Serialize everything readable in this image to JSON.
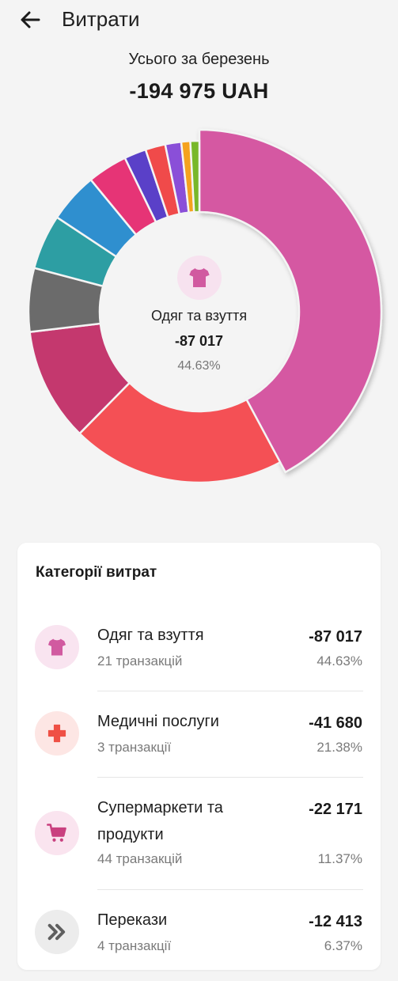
{
  "header": {
    "title": "Витрати"
  },
  "summary": {
    "label": "Усього за березень",
    "total": "-194 975 UAH"
  },
  "selected": {
    "name": "Одяг та взуття",
    "value": "-87 017",
    "percent": "44.63%"
  },
  "card": {
    "title": "Категорії витрат"
  },
  "categories": [
    {
      "name": "Одяг та взуття",
      "transactions": "21 транзакцій",
      "amount": "-87 017",
      "percent": "44.63%",
      "icon": "tshirt-icon"
    },
    {
      "name": "Медичні послуги",
      "transactions": "3 транзакції",
      "amount": "-41 680",
      "percent": "21.38%",
      "icon": "medical-cross-icon"
    },
    {
      "name": "Супермаркети та продукти",
      "transactions": "44 транзакцій",
      "amount": "-22 171",
      "percent": "11.37%",
      "icon": "shopping-cart-icon"
    },
    {
      "name": "Перекази",
      "transactions": "4 транзакції",
      "amount": "-12 413",
      "percent": "6.37%",
      "icon": "double-chevron-right-icon"
    }
  ],
  "chart_data": {
    "type": "pie",
    "style": "donut",
    "values": [
      44.63,
      21.38,
      11.37,
      6.37,
      5.5,
      5.0,
      4.0,
      2.2,
      2.0,
      1.6,
      0.9,
      0.9
    ],
    "colors": [
      "#d558a2",
      "#f45055",
      "#c4386e",
      "#6b6b6b",
      "#2d9ea3",
      "#2f8fcf",
      "#e63476",
      "#5a40c8",
      "#f04a4a",
      "#8a4fd8",
      "#f5a21e",
      "#78b82a"
    ],
    "highlighted_index": 0
  }
}
